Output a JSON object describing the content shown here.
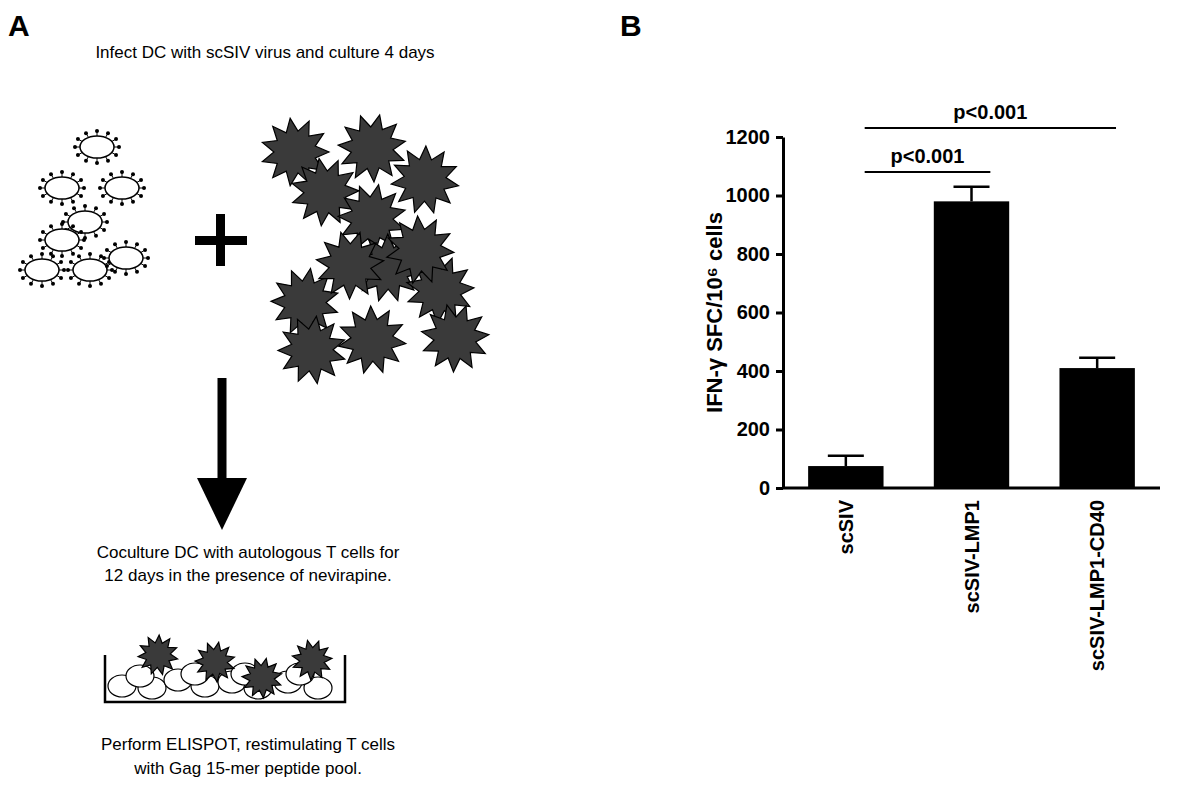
{
  "panel_labels": [
    "A",
    "B"
  ],
  "diagram": {
    "step1": "Infect DC with scSIV virus and culture 4 days",
    "step2": [
      "Coculture DC with autologous T cells for",
      "12 days in the presence of nevirapine."
    ],
    "step3": [
      "Perform ELISPOT, restimulating T cells",
      "with Gag 15-mer peptide pool."
    ]
  },
  "chart_data": {
    "type": "bar",
    "y_label": "IFN-γ SFC/10⁶ cells",
    "categories": [
      "scSIV",
      "scSIV-LMP1",
      "scSIV-LMP1-CD40"
    ],
    "values": [
      75,
      980,
      410
    ],
    "errors": [
      35,
      50,
      35
    ],
    "color": "#000000",
    "ylim": [
      0,
      1200
    ],
    "yticks": [
      0,
      200,
      400,
      600,
      800,
      1000,
      1200
    ],
    "grid": false,
    "annotations": [
      {
        "text": "p<0.001",
        "between": [
          "scSIV",
          "scSIV-LMP1"
        ]
      },
      {
        "text": "p<0.001",
        "between": [
          "scSIV",
          "scSIV-LMP1-CD40"
        ]
      }
    ]
  }
}
